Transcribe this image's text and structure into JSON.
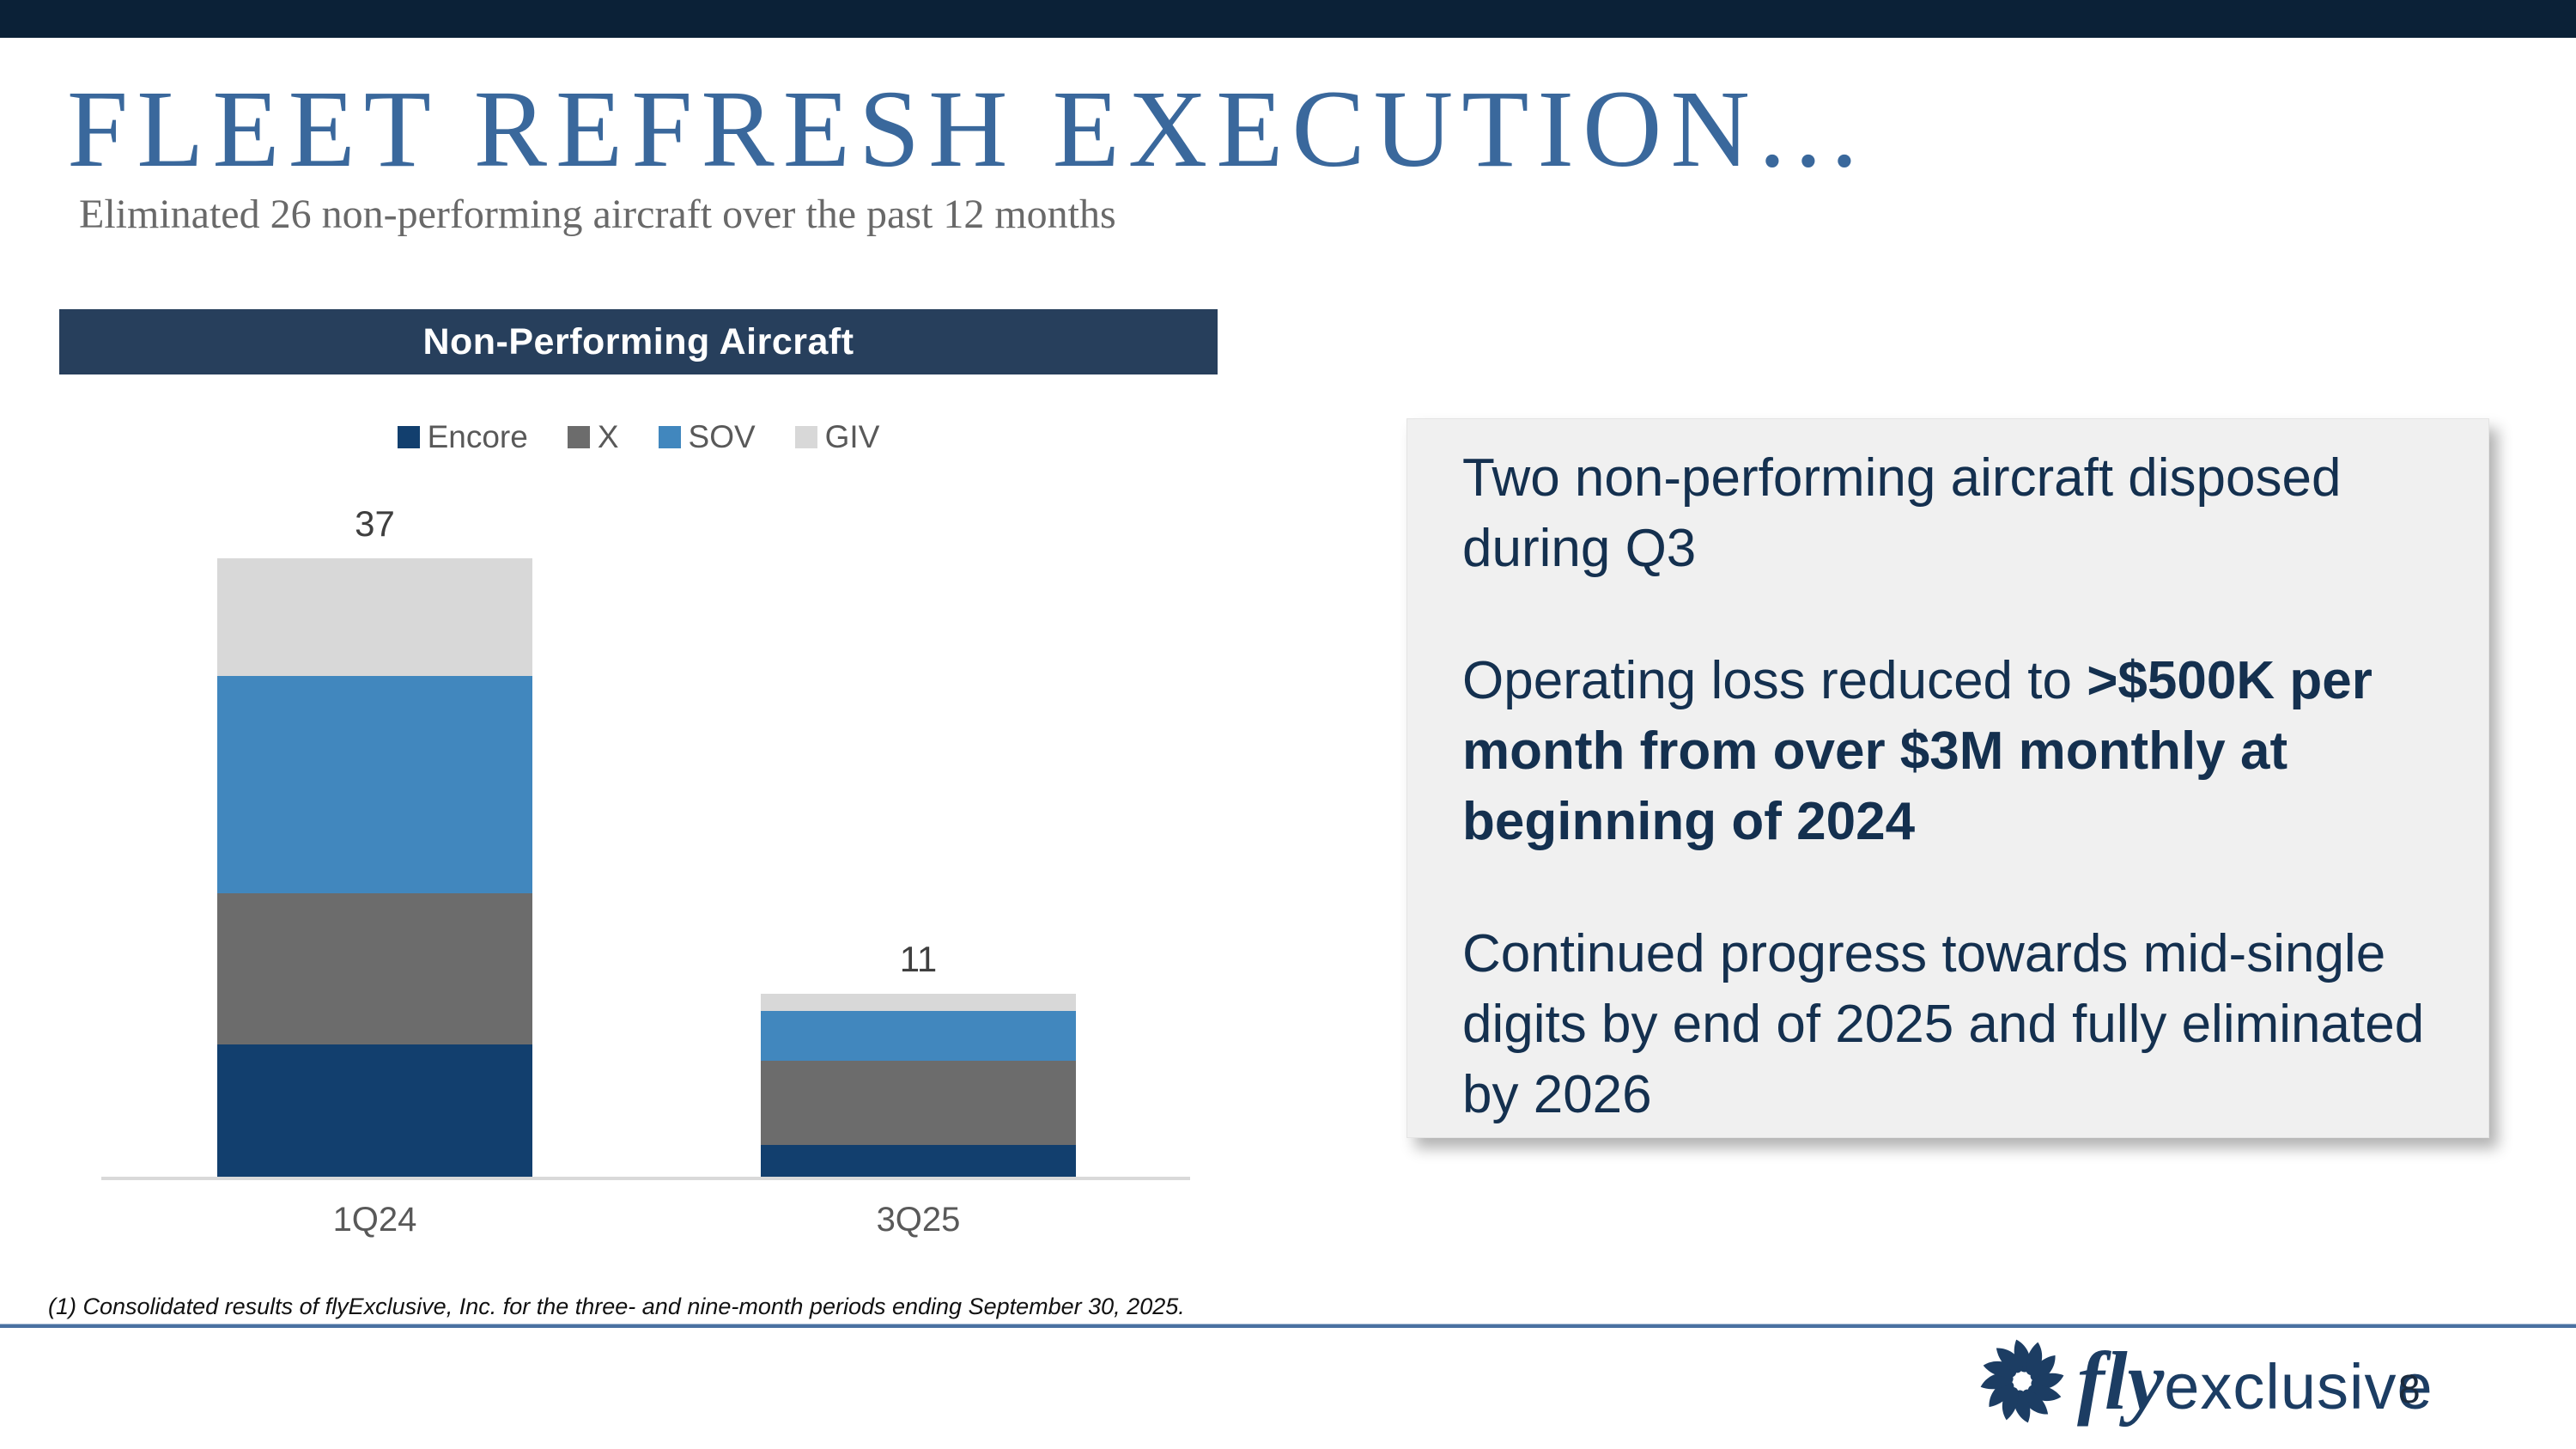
{
  "header": {
    "title": "FLEET REFRESH EXECUTION...",
    "subtitle": "Eliminated 26 non-performing aircraft over the past 12 months"
  },
  "chart": {
    "header_label": "Non-Performing Aircraft"
  },
  "chart_data": {
    "type": "bar",
    "stacked": true,
    "title": "Non-Performing Aircraft",
    "categories": [
      "1Q24",
      "3Q25"
    ],
    "series": [
      {
        "name": "Encore",
        "color": "#123F6E",
        "values": [
          8,
          2
        ]
      },
      {
        "name": "X",
        "color": "#6C6C6C",
        "values": [
          9,
          5
        ]
      },
      {
        "name": "SOV",
        "color": "#4187BE",
        "values": [
          13,
          3
        ]
      },
      {
        "name": "GIV",
        "color": "#D8D8D8",
        "values": [
          7,
          1
        ]
      }
    ],
    "totals": [
      37,
      11
    ],
    "xlabel": "",
    "ylabel": "",
    "ylim": [
      0,
      38
    ],
    "grid": false,
    "value_axis_visible": false,
    "legend_position": "top"
  },
  "callout": {
    "paragraphs": [
      [
        {
          "text": "Two non-performing aircraft disposed during Q3",
          "bold": false
        }
      ],
      [
        {
          "text": "Operating loss reduced to ",
          "bold": false
        },
        {
          "text": ">$500K per month from over $3M monthly at beginning of 2024",
          "bold": true
        }
      ],
      [
        {
          "text": "Continued progress towards mid-single digits by end of 2025 and fully eliminated by 2026",
          "bold": false
        }
      ]
    ]
  },
  "footer": {
    "footnote": "(1) Consolidated results of flyExclusive, Inc. for the three- and nine-month periods ending September 30, 2025.",
    "logo_fly": "fly",
    "logo_exclusive": "exclusive",
    "page_number": "8"
  },
  "colors": {
    "top_bar_navy": "#0B2137",
    "title_blue": "#3A689C",
    "chart_header_navy": "#273F5C",
    "callout_text_navy": "#14304F",
    "callout_background": "#F0F0F0",
    "axis_gray": "#D9D9D9",
    "divider_blue": "#4A71A1",
    "logo_navy": "#1C3D63"
  }
}
